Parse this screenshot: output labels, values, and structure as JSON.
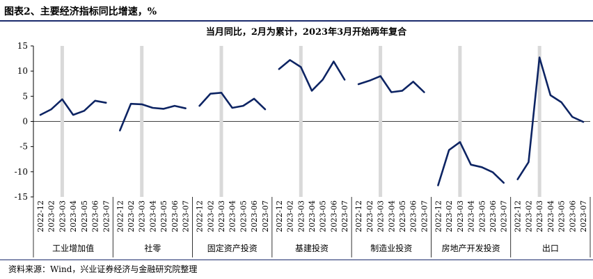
{
  "figure_title": "图表2、主要经济指标同比增速，%",
  "source": "资料来源：Wind，兴业证券经济与金融研究院整理",
  "colors": {
    "line": "#0d2463",
    "highlight_bar": "#d9d9d9",
    "zero_line": "#000000",
    "rule": "#1a2a6c"
  },
  "chart_data": {
    "type": "line",
    "title": "当月同比，2月为累计，2023年3月开始两年复合",
    "ylim": [
      -15,
      15
    ],
    "yticks": [
      "15",
      "10",
      "5",
      "0",
      "-5",
      "-10",
      "-15"
    ],
    "ytick_values": [
      15,
      10,
      5,
      0,
      -5,
      -10,
      -15
    ],
    "highlight_category": "2023-03",
    "groups": [
      {
        "name": "工业增加值",
        "categories": [
          "2022-12",
          "2023-02",
          "2023-03",
          "2023-04",
          "2023-05",
          "2023-06",
          "2023-07"
        ],
        "values": [
          1.3,
          2.4,
          4.4,
          1.3,
          2.1,
          4.1,
          3.7
        ]
      },
      {
        "name": "社零",
        "categories": [
          "2022-12",
          "2023-02",
          "2023-03",
          "2023-04",
          "2023-05",
          "2023-06",
          "2023-07"
        ],
        "values": [
          -1.8,
          3.5,
          3.4,
          2.7,
          2.5,
          3.1,
          2.6
        ]
      },
      {
        "name": "固定资产投资",
        "categories": [
          "2022-12",
          "2023-02",
          "2023-03",
          "2023-04",
          "2023-05",
          "2023-06",
          "2023-07"
        ],
        "values": [
          3.1,
          5.5,
          5.7,
          2.7,
          3.1,
          4.5,
          2.4
        ]
      },
      {
        "name": "基建投资",
        "categories": [
          "2022-12",
          "2023-02",
          "2023-03",
          "2023-04",
          "2023-05",
          "2023-06",
          "2023-07"
        ],
        "values": [
          10.4,
          12.2,
          10.8,
          6.1,
          8.3,
          11.9,
          8.3
        ]
      },
      {
        "name": "制造业投资",
        "categories": [
          "2022-12",
          "2023-02",
          "2023-03",
          "2023-04",
          "2023-05",
          "2023-06",
          "2023-07"
        ],
        "values": [
          7.4,
          8.1,
          9.0,
          5.8,
          6.1,
          7.9,
          5.8
        ]
      },
      {
        "name": "房地产开发投资",
        "categories": [
          "2022-12",
          "2023-02",
          "2023-03",
          "2023-04",
          "2023-05",
          "2023-06",
          "2023-07"
        ],
        "values": [
          -12.7,
          -5.7,
          -4.1,
          -8.6,
          -9.1,
          -10.1,
          -12.2
        ]
      },
      {
        "name": "出口",
        "categories": [
          "2022-12",
          "2023-02",
          "2023-03",
          "2023-04",
          "2023-05",
          "2023-06",
          "2023-07"
        ],
        "values": [
          -11.5,
          -8.1,
          12.7,
          5.2,
          3.8,
          0.9,
          -0.1
        ]
      }
    ]
  }
}
